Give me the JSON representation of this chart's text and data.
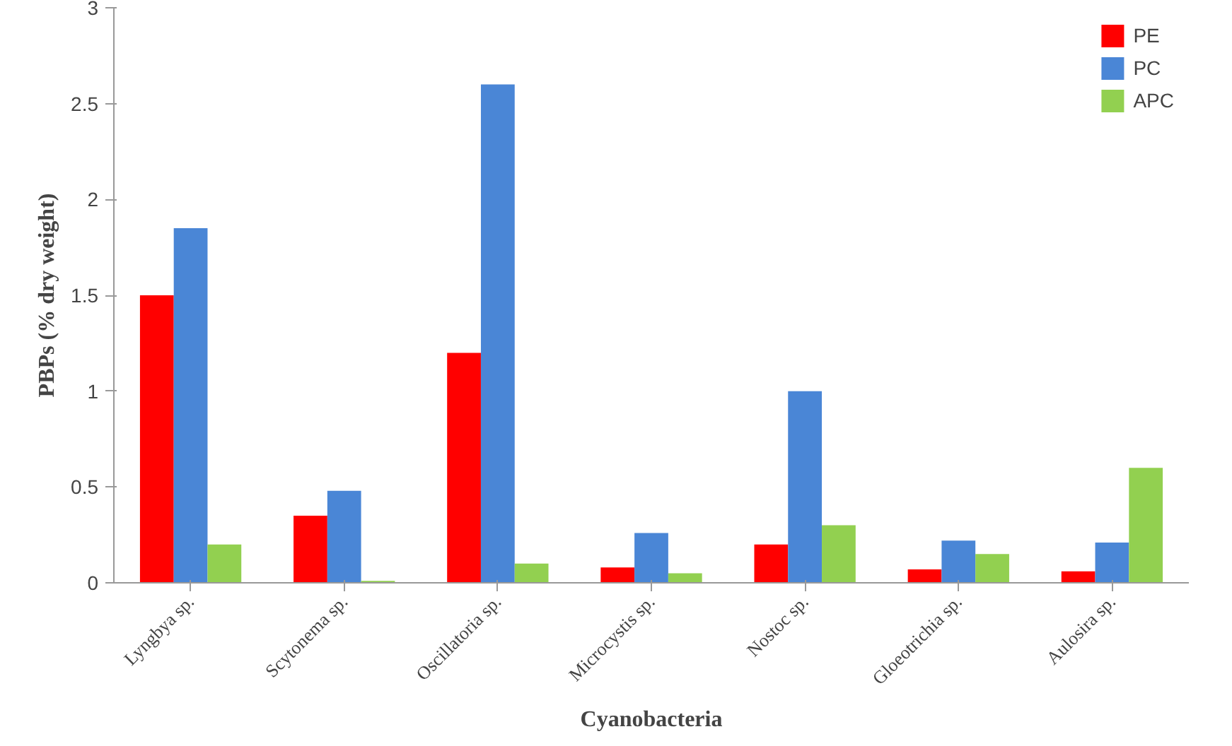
{
  "chart_data": {
    "type": "bar",
    "xlabel": "Cyanobacteria",
    "ylabel": "PBPs (% dry weight)",
    "categories": [
      "Lyngbya sp.",
      "Scytonema sp.",
      "Oscillatoria sp.",
      "Microcystis sp.",
      "Nostoc sp.",
      "Gloeotrichia sp.",
      "Aulosira sp."
    ],
    "series": [
      {
        "name": "PE",
        "color": "#ff0000",
        "values": [
          1.5,
          0.35,
          1.2,
          0.08,
          0.2,
          0.07,
          0.06
        ]
      },
      {
        "name": "PC",
        "color": "#4a86d6",
        "values": [
          1.85,
          0.48,
          2.6,
          0.26,
          1.0,
          0.22,
          0.21
        ]
      },
      {
        "name": "APC",
        "color": "#92d050",
        "values": [
          0.2,
          0.01,
          0.1,
          0.05,
          0.3,
          0.15,
          0.6
        ]
      }
    ],
    "ylim": [
      0,
      3
    ],
    "yticks": [
      0,
      0.5,
      1,
      1.5,
      2,
      2.5,
      3
    ],
    "grid": false,
    "legend": "top right"
  }
}
